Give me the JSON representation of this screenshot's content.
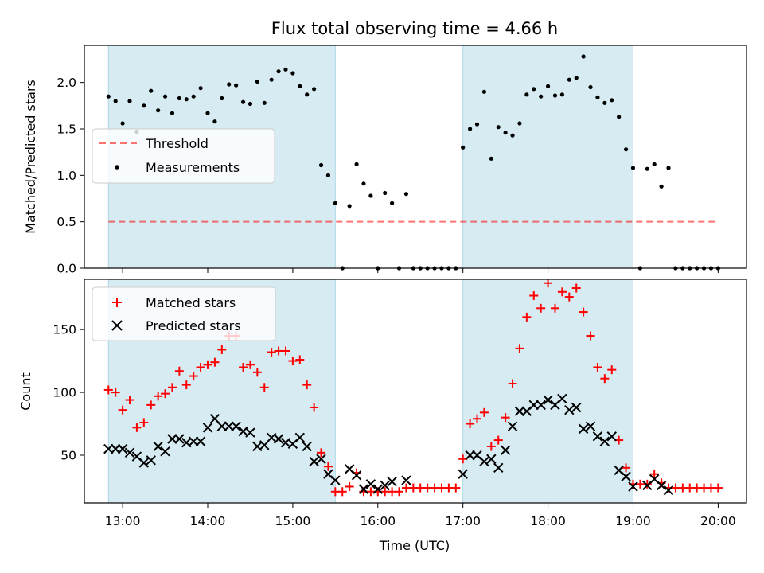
{
  "title": "Flux total observing time = 4.66 h",
  "colors": {
    "shade": "#add8e6",
    "threshold": "#ff0000",
    "measure": "#000000",
    "matched": "#ff0000",
    "predicted": "#000000"
  },
  "chart_data": [
    {
      "type": "scatter",
      "ylabel": "Matched/Predicted stars",
      "ylim": [
        0,
        2.4
      ],
      "xlim": [
        "12:33",
        "20:20"
      ],
      "yticks": [
        "0.0",
        "0.5",
        "1.0",
        "1.5",
        "2.0"
      ],
      "legend_position": "center-left",
      "shaded_intervals": [
        [
          "12:50",
          "15:30"
        ],
        [
          "17:00",
          "19:00"
        ]
      ],
      "threshold": {
        "name": "Threshold",
        "value": 0.5,
        "x_range": [
          "12:50",
          "20:00"
        ]
      },
      "series": [
        {
          "name": "Measurements",
          "points": [
            [
              "12:50",
              1.85
            ],
            [
              "12:55",
              1.8
            ],
            [
              "13:00",
              1.56
            ],
            [
              "13:05",
              1.8
            ],
            [
              "13:10",
              1.47
            ],
            [
              "13:15",
              1.75
            ],
            [
              "13:20",
              1.91
            ],
            [
              "13:25",
              1.7
            ],
            [
              "13:30",
              1.85
            ],
            [
              "13:35",
              1.67
            ],
            [
              "13:40",
              1.83
            ],
            [
              "13:45",
              1.82
            ],
            [
              "13:50",
              1.85
            ],
            [
              "13:55",
              1.94
            ],
            [
              "14:00",
              1.67
            ],
            [
              "14:05",
              1.58
            ],
            [
              "14:10",
              1.83
            ],
            [
              "14:15",
              1.98
            ],
            [
              "14:20",
              1.97
            ],
            [
              "14:25",
              1.79
            ],
            [
              "14:30",
              1.77
            ],
            [
              "14:35",
              2.01
            ],
            [
              "14:40",
              1.78
            ],
            [
              "14:45",
              2.03
            ],
            [
              "14:50",
              2.12
            ],
            [
              "14:55",
              2.14
            ],
            [
              "15:00",
              2.1
            ],
            [
              "15:05",
              1.96
            ],
            [
              "15:10",
              1.87
            ],
            [
              "15:15",
              1.93
            ],
            [
              "15:20",
              1.11
            ],
            [
              "15:25",
              1.0
            ],
            [
              "15:30",
              0.7
            ],
            [
              "15:35",
              0.0
            ],
            [
              "15:40",
              0.67
            ],
            [
              "15:45",
              1.12
            ],
            [
              "15:50",
              0.91
            ],
            [
              "15:55",
              0.78
            ],
            [
              "16:00",
              0.0
            ],
            [
              "16:05",
              0.81
            ],
            [
              "16:10",
              0.7
            ],
            [
              "16:15",
              0.0
            ],
            [
              "16:20",
              0.8
            ],
            [
              "16:25",
              0.0
            ],
            [
              "16:30",
              0.0
            ],
            [
              "16:35",
              0.0
            ],
            [
              "16:40",
              0.0
            ],
            [
              "16:45",
              0.0
            ],
            [
              "16:50",
              0.0
            ],
            [
              "16:55",
              0.0
            ],
            [
              "17:00",
              1.3
            ],
            [
              "17:05",
              1.5
            ],
            [
              "17:10",
              1.55
            ],
            [
              "17:15",
              1.9
            ],
            [
              "17:20",
              1.18
            ],
            [
              "17:25",
              1.52
            ],
            [
              "17:30",
              1.46
            ],
            [
              "17:35",
              1.43
            ],
            [
              "17:40",
              1.56
            ],
            [
              "17:45",
              1.87
            ],
            [
              "17:50",
              1.93
            ],
            [
              "17:55",
              1.85
            ],
            [
              "18:00",
              1.96
            ],
            [
              "18:05",
              1.86
            ],
            [
              "18:10",
              1.87
            ],
            [
              "18:15",
              2.03
            ],
            [
              "18:20",
              2.05
            ],
            [
              "18:25",
              2.28
            ],
            [
              "18:30",
              1.95
            ],
            [
              "18:35",
              1.84
            ],
            [
              "18:40",
              1.78
            ],
            [
              "18:45",
              1.81
            ],
            [
              "18:50",
              1.63
            ],
            [
              "18:55",
              1.28
            ],
            [
              "19:00",
              1.08
            ],
            [
              "19:05",
              0.0
            ],
            [
              "19:10",
              1.07
            ],
            [
              "19:15",
              1.12
            ],
            [
              "19:20",
              0.88
            ],
            [
              "19:25",
              1.08
            ],
            [
              "19:30",
              0.0
            ],
            [
              "19:35",
              0.0
            ],
            [
              "19:40",
              0.0
            ],
            [
              "19:45",
              0.0
            ],
            [
              "19:50",
              0.0
            ],
            [
              "19:55",
              0.0
            ],
            [
              "20:00",
              0.0
            ]
          ]
        }
      ]
    },
    {
      "type": "scatter",
      "ylabel": "Count",
      "xlabel": "Time (UTC)",
      "ylim": [
        12,
        190
      ],
      "xlim": [
        "12:33",
        "20:20"
      ],
      "yticks": [
        "50",
        "100",
        "150"
      ],
      "xticks": [
        "13:00",
        "14:00",
        "15:00",
        "16:00",
        "17:00",
        "18:00",
        "19:00",
        "20:00"
      ],
      "legend_position": "top-left",
      "shaded_intervals": [
        [
          "12:50",
          "15:30"
        ],
        [
          "17:00",
          "19:00"
        ]
      ],
      "series": [
        {
          "name": "Matched stars",
          "marker": "+",
          "points": [
            [
              "12:50",
              102
            ],
            [
              "12:55",
              100
            ],
            [
              "13:00",
              86
            ],
            [
              "13:05",
              94
            ],
            [
              "13:10",
              72
            ],
            [
              "13:15",
              76
            ],
            [
              "13:20",
              90
            ],
            [
              "13:25",
              97
            ],
            [
              "13:30",
              99
            ],
            [
              "13:35",
              104
            ],
            [
              "13:40",
              117
            ],
            [
              "13:45",
              106
            ],
            [
              "13:50",
              113
            ],
            [
              "13:55",
              120
            ],
            [
              "14:00",
              122
            ],
            [
              "14:05",
              124
            ],
            [
              "14:10",
              134
            ],
            [
              "14:15",
              145
            ],
            [
              "14:20",
              145
            ],
            [
              "14:25",
              120
            ],
            [
              "14:30",
              122
            ],
            [
              "14:35",
              116
            ],
            [
              "14:40",
              104
            ],
            [
              "14:45",
              132
            ],
            [
              "14:50",
              133
            ],
            [
              "14:55",
              133
            ],
            [
              "15:00",
              125
            ],
            [
              "15:05",
              126
            ],
            [
              "15:10",
              106
            ],
            [
              "15:15",
              88
            ],
            [
              "15:20",
              52
            ],
            [
              "15:25",
              41
            ],
            [
              "15:30",
              21
            ],
            [
              "15:35",
              21
            ],
            [
              "15:40",
              25
            ],
            [
              "15:45",
              36
            ],
            [
              "15:50",
              21
            ],
            [
              "15:55",
              21
            ],
            [
              "16:00",
              21
            ],
            [
              "16:05",
              21
            ],
            [
              "16:10",
              21
            ],
            [
              "16:15",
              21
            ],
            [
              "16:20",
              24
            ],
            [
              "16:25",
              24
            ],
            [
              "16:30",
              24
            ],
            [
              "16:35",
              24
            ],
            [
              "16:40",
              24
            ],
            [
              "16:45",
              24
            ],
            [
              "16:50",
              24
            ],
            [
              "16:55",
              24
            ],
            [
              "17:00",
              47
            ],
            [
              "17:05",
              75
            ],
            [
              "17:10",
              79
            ],
            [
              "17:15",
              84
            ],
            [
              "17:20",
              57
            ],
            [
              "17:25",
              62
            ],
            [
              "17:30",
              80
            ],
            [
              "17:35",
              107
            ],
            [
              "17:40",
              135
            ],
            [
              "17:45",
              160
            ],
            [
              "17:50",
              177
            ],
            [
              "17:55",
              167
            ],
            [
              "18:00",
              187
            ],
            [
              "18:05",
              167
            ],
            [
              "18:10",
              180
            ],
            [
              "18:15",
              176
            ],
            [
              "18:20",
              183
            ],
            [
              "18:25",
              164
            ],
            [
              "18:30",
              145
            ],
            [
              "18:35",
              120
            ],
            [
              "18:40",
              111
            ],
            [
              "18:45",
              118
            ],
            [
              "18:50",
              62
            ],
            [
              "18:55",
              40
            ],
            [
              "19:00",
              27
            ],
            [
              "19:05",
              27
            ],
            [
              "19:10",
              27
            ],
            [
              "19:15",
              35
            ],
            [
              "19:20",
              28
            ],
            [
              "19:25",
              24
            ],
            [
              "19:30",
              24
            ],
            [
              "19:35",
              24
            ],
            [
              "19:40",
              24
            ],
            [
              "19:45",
              24
            ],
            [
              "19:50",
              24
            ],
            [
              "19:55",
              24
            ],
            [
              "20:00",
              24
            ]
          ]
        },
        {
          "name": "Predicted stars",
          "marker": "x",
          "points": [
            [
              "12:50",
              55
            ],
            [
              "12:55",
              55
            ],
            [
              "13:00",
              55
            ],
            [
              "13:05",
              52
            ],
            [
              "13:10",
              49
            ],
            [
              "13:15",
              44
            ],
            [
              "13:20",
              46
            ],
            [
              "13:25",
              57
            ],
            [
              "13:30",
              53
            ],
            [
              "13:35",
              63
            ],
            [
              "13:40",
              63
            ],
            [
              "13:45",
              60
            ],
            [
              "13:50",
              61
            ],
            [
              "13:55",
              61
            ],
            [
              "14:00",
              72
            ],
            [
              "14:05",
              79
            ],
            [
              "14:10",
              73
            ],
            [
              "14:15",
              73
            ],
            [
              "14:20",
              73
            ],
            [
              "14:25",
              69
            ],
            [
              "14:30",
              68
            ],
            [
              "14:35",
              57
            ],
            [
              "14:40",
              58
            ],
            [
              "14:45",
              64
            ],
            [
              "14:50",
              63
            ],
            [
              "14:55",
              60
            ],
            [
              "15:00",
              59
            ],
            [
              "15:05",
              64
            ],
            [
              "15:10",
              57
            ],
            [
              "15:15",
              45
            ],
            [
              "15:20",
              47
            ],
            [
              "15:25",
              35
            ],
            [
              "15:30",
              30
            ],
            [
              "15:40",
              39
            ],
            [
              "15:45",
              34
            ],
            [
              "15:50",
              23
            ],
            [
              "15:55",
              27
            ],
            [
              "16:00",
              23
            ],
            [
              "16:05",
              26
            ],
            [
              "16:10",
              29
            ],
            [
              "16:20",
              30
            ],
            [
              "17:00",
              35
            ],
            [
              "17:05",
              50
            ],
            [
              "17:10",
              50
            ],
            [
              "17:15",
              45
            ],
            [
              "17:20",
              47
            ],
            [
              "17:25",
              40
            ],
            [
              "17:30",
              54
            ],
            [
              "17:35",
              73
            ],
            [
              "17:40",
              85
            ],
            [
              "17:45",
              85
            ],
            [
              "17:50",
              90
            ],
            [
              "17:55",
              90
            ],
            [
              "18:00",
              94
            ],
            [
              "18:05",
              90
            ],
            [
              "18:10",
              95
            ],
            [
              "18:15",
              86
            ],
            [
              "18:20",
              88
            ],
            [
              "18:25",
              71
            ],
            [
              "18:30",
              73
            ],
            [
              "18:35",
              65
            ],
            [
              "18:40",
              61
            ],
            [
              "18:45",
              65
            ],
            [
              "18:50",
              38
            ],
            [
              "18:55",
              33
            ],
            [
              "19:00",
              25
            ],
            [
              "19:10",
              26
            ],
            [
              "19:15",
              31
            ],
            [
              "19:20",
              26
            ],
            [
              "19:25",
              22
            ]
          ]
        }
      ]
    }
  ]
}
